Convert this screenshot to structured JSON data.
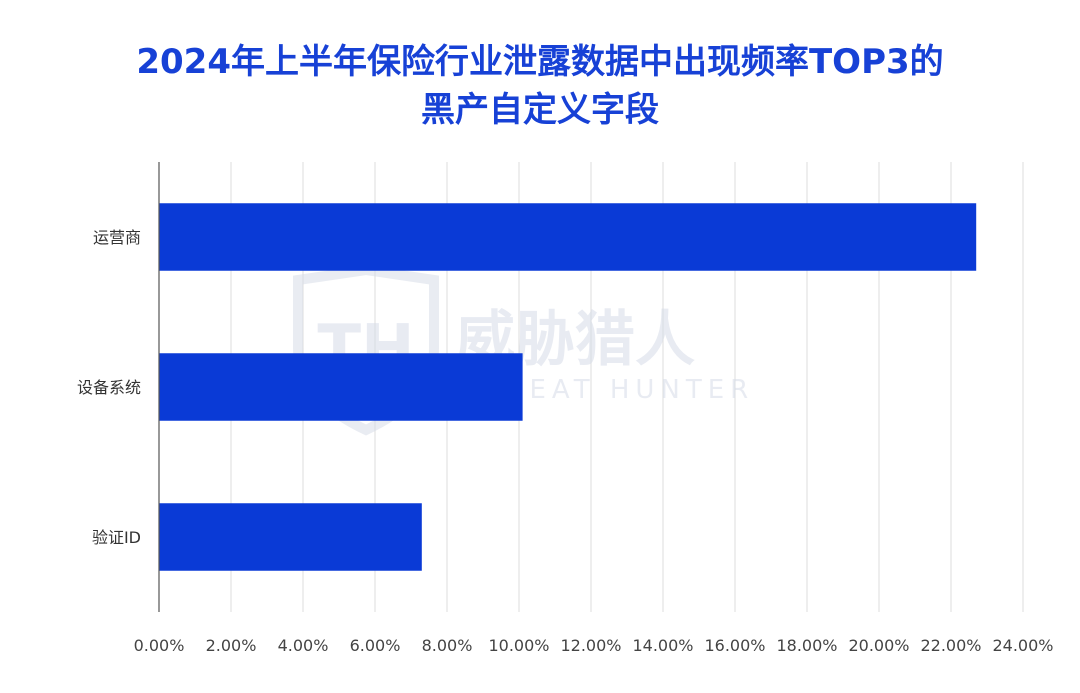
{
  "chart_data": {
    "type": "bar",
    "orientation": "horizontal",
    "title_lines": [
      "2024年上半年保险行业泄露数据中出现频率TOP3的",
      "黑产自定义字段"
    ],
    "categories": [
      "运营商",
      "设备系统",
      "验证ID"
    ],
    "values": [
      22.7,
      10.1,
      7.3
    ],
    "unit": "%",
    "xlim": [
      0,
      24
    ],
    "x_ticks": [
      "0.00%",
      "2.00%",
      "4.00%",
      "6.00%",
      "8.00%",
      "10.00%",
      "12.00%",
      "14.00%",
      "16.00%",
      "18.00%",
      "20.00%",
      "22.00%",
      "24.00%"
    ],
    "grid": "vertical",
    "legend": "none",
    "bar_color": "#0a3ad6",
    "title_color": "#1741d6"
  },
  "watermark": {
    "name_cn": "威胁猎人",
    "name_en": "THREAT HUNTER",
    "logo_text": "TH"
  }
}
